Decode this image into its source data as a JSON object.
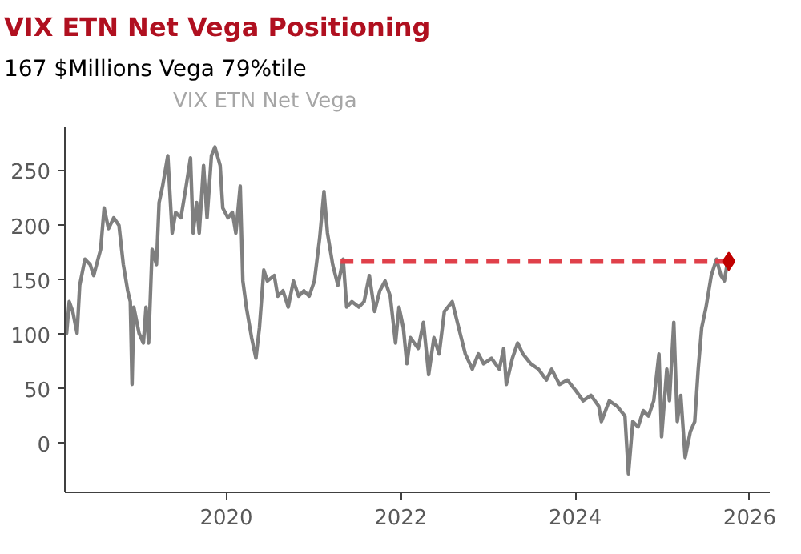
{
  "chart_data": {
    "type": "line",
    "title": "VIX ETN Net Vega Positioning",
    "subtitle": "167 $Millions Vega 79%tile",
    "xlim": [
      2018.15,
      2026.23
    ],
    "xticks": [
      2020,
      2022,
      2024,
      2026
    ],
    "ylim": [
      -45,
      290
    ],
    "yticks": [
      0,
      50,
      100,
      150,
      200,
      250
    ],
    "grid": false,
    "legend": "top",
    "series": [
      {
        "name": "VIX ETN Net Vega",
        "color": "#7f7f7f",
        "line_style": "solid",
        "x": [
          2018.15,
          2018.17,
          2018.2,
          2018.24,
          2018.29,
          2018.32,
          2018.38,
          2018.44,
          2018.48,
          2018.56,
          2018.6,
          2018.65,
          2018.71,
          2018.77,
          2018.82,
          2018.87,
          2018.9,
          2018.92,
          2018.94,
          2019.0,
          2019.05,
          2019.08,
          2019.11,
          2019.15,
          2019.2,
          2019.23,
          2019.27,
          2019.33,
          2019.38,
          2019.42,
          2019.48,
          2019.54,
          2019.59,
          2019.62,
          2019.66,
          2019.69,
          2019.74,
          2019.78,
          2019.83,
          2019.87,
          2019.93,
          2019.96,
          2020.02,
          2020.07,
          2020.11,
          2020.16,
          2020.19,
          2020.23,
          2020.29,
          2020.34,
          2020.38,
          2020.43,
          2020.47,
          2020.55,
          2020.59,
          2020.65,
          2020.71,
          2020.77,
          2020.83,
          2020.89,
          2020.95,
          2021.01,
          2021.07,
          2021.12,
          2021.16,
          2021.22,
          2021.28,
          2021.34,
          2021.38,
          2021.44,
          2021.52,
          2021.58,
          2021.64,
          2021.7,
          2021.76,
          2021.82,
          2021.88,
          2021.94,
          2021.98,
          2022.03,
          2022.07,
          2022.11,
          2022.2,
          2022.26,
          2022.32,
          2022.38,
          2022.44,
          2022.5,
          2022.59,
          2022.68,
          2022.74,
          2022.82,
          2022.89,
          2022.95,
          2023.04,
          2023.13,
          2023.18,
          2023.21,
          2023.28,
          2023.34,
          2023.4,
          2023.49,
          2023.58,
          2023.67,
          2023.73,
          2023.82,
          2023.91,
          2024.0,
          2024.09,
          2024.18,
          2024.27,
          2024.3,
          2024.39,
          2024.48,
          2024.57,
          2024.61,
          2024.66,
          2024.72,
          2024.78,
          2024.84,
          2024.9,
          2024.96,
          2024.99,
          2025.05,
          2025.08,
          2025.13,
          2025.17,
          2025.21,
          2025.26,
          2025.32,
          2025.37,
          2025.41,
          2025.45,
          2025.5,
          2025.56,
          2025.62,
          2025.67,
          2025.71,
          2025.74
        ],
        "values": [
          116,
          101,
          130,
          121,
          101,
          145,
          169,
          164,
          154,
          178,
          216,
          197,
          207,
          200,
          164,
          140,
          130,
          54,
          125,
          101,
          92,
          125,
          92,
          178,
          164,
          221,
          236,
          264,
          193,
          212,
          207,
          236,
          262,
          193,
          221,
          193,
          255,
          207,
          264,
          272,
          255,
          216,
          207,
          212,
          193,
          236,
          149,
          125,
          97,
          78,
          106,
          159,
          149,
          154,
          135,
          140,
          125,
          149,
          135,
          140,
          135,
          149,
          188,
          231,
          193,
          164,
          145,
          169,
          125,
          130,
          125,
          130,
          154,
          121,
          140,
          149,
          135,
          92,
          125,
          106,
          73,
          97,
          87,
          111,
          63,
          97,
          82,
          121,
          130,
          101,
          82,
          68,
          82,
          73,
          78,
          68,
          87,
          54,
          78,
          92,
          82,
          73,
          68,
          58,
          68,
          54,
          58,
          49,
          39,
          44,
          34,
          20,
          39,
          34,
          25,
          -28,
          20,
          15,
          30,
          25,
          39,
          82,
          6,
          68,
          39,
          111,
          20,
          44,
          -13,
          11,
          20,
          68,
          106,
          125,
          154,
          169,
          154,
          149,
          164
        ]
      },
      {
        "color": "#e0404a",
        "type": "line",
        "line_style": "dashed",
        "x": [
          2021.31,
          2025.76
        ],
        "values": [
          167,
          167
        ]
      },
      {
        "color": "#c00000",
        "type": "scatter",
        "marker": "diamond",
        "x": [
          2025.76
        ],
        "values": [
          167
        ]
      }
    ]
  }
}
